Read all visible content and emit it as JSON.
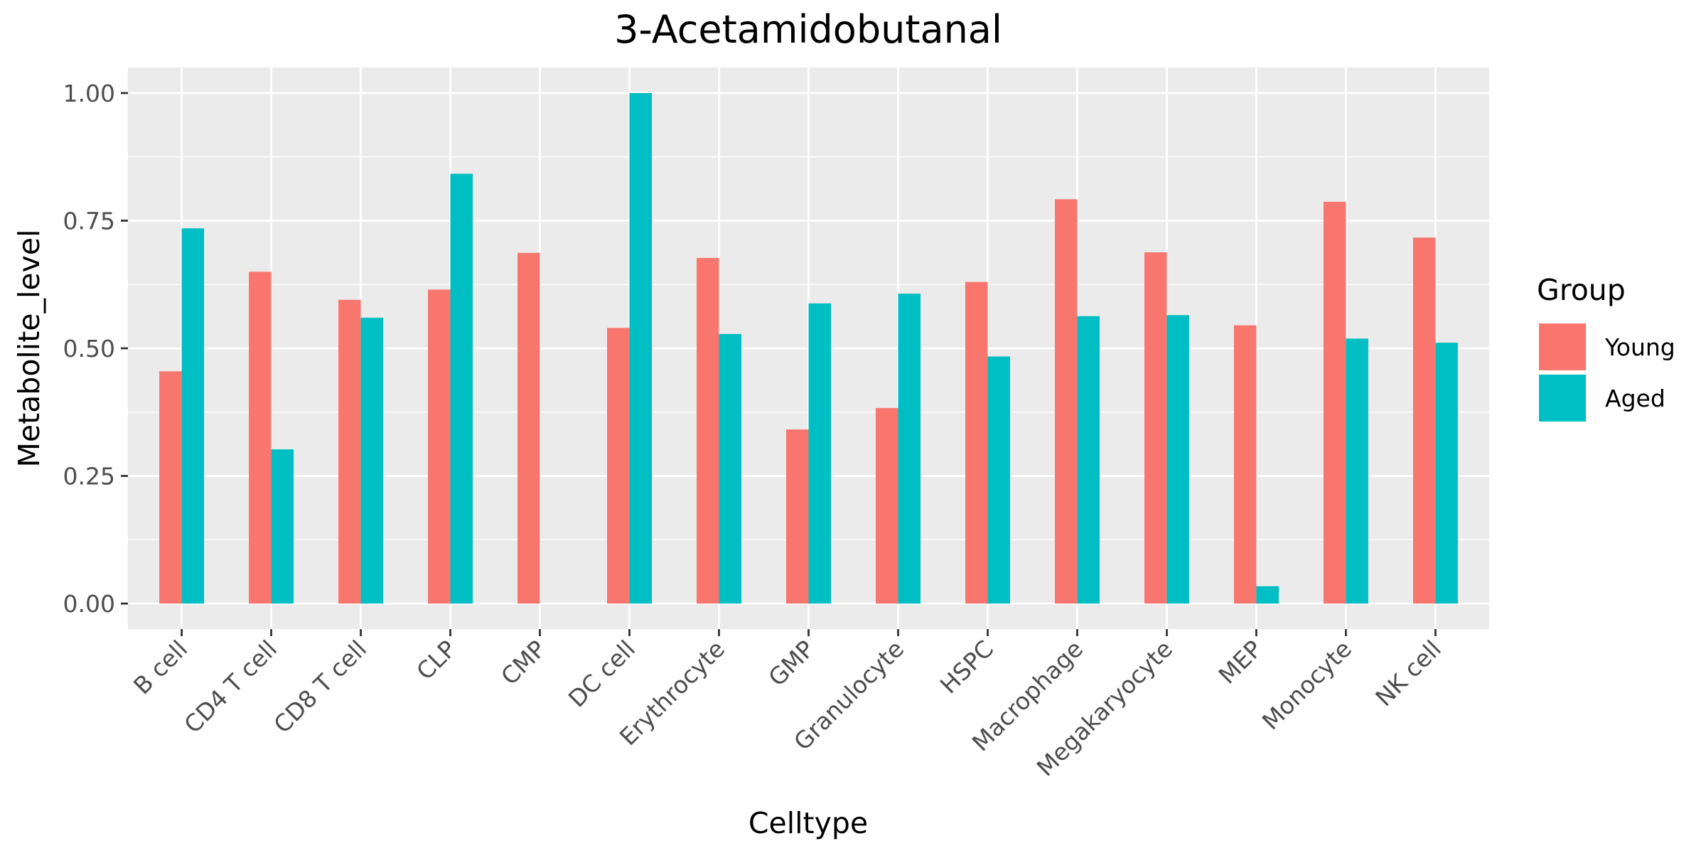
{
  "chart_data": {
    "type": "bar",
    "title": "3-Acetamidobutanal",
    "xlabel": "Celltype",
    "ylabel": "Metabolite_level",
    "ylim": [
      -0.05,
      1.05
    ],
    "yticks": [
      0.0,
      0.25,
      0.5,
      0.75,
      1.0
    ],
    "ytick_labels": [
      "0.00",
      "0.25",
      "0.50",
      "0.75",
      "1.00"
    ],
    "grid": true,
    "categories": [
      "B cell",
      "CD4 T cell",
      "CD8 T cell",
      "CLP",
      "CMP",
      "DC cell",
      "Erythrocyte",
      "GMP",
      "Granulocyte",
      "HSPC",
      "Macrophage",
      "Megakaryocyte",
      "MEP",
      "Monocyte",
      "NK cell"
    ],
    "series": [
      {
        "name": "Young",
        "color": "#F8766D",
        "values": [
          0.455,
          0.65,
          0.595,
          0.615,
          0.687,
          0.54,
          0.677,
          0.341,
          0.383,
          0.63,
          0.792,
          0.688,
          0.545,
          0.787,
          0.717
        ]
      },
      {
        "name": "Aged",
        "color": "#00BFC4",
        "values": [
          0.735,
          0.302,
          0.56,
          0.842,
          null,
          1.0,
          0.528,
          0.588,
          0.607,
          0.484,
          0.563,
          0.565,
          0.034,
          0.519,
          0.511
        ]
      }
    ],
    "legend": {
      "title": "Group",
      "position": "right"
    }
  }
}
